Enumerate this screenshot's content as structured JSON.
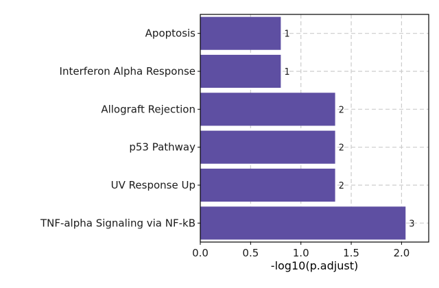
{
  "chart_data": {
    "type": "bar",
    "orientation": "horizontal",
    "title": "",
    "xlabel": "-log10(p.adjust)",
    "ylabel": "",
    "categories": [
      "Apoptosis",
      "Interferon Alpha Response",
      "Allograft Rejection",
      "p53 Pathway",
      "UV Response Up",
      "TNF-alpha Signaling via NF-kB"
    ],
    "values": [
      0.8,
      0.8,
      1.34,
      1.34,
      1.34,
      2.04
    ],
    "bar_labels": [
      "1",
      "1",
      "2",
      "2",
      "2",
      "3"
    ],
    "xlim": [
      0,
      2.27
    ],
    "xticks": [
      0.0,
      0.5,
      1.0,
      1.5,
      2.0
    ],
    "xtick_labels": [
      "0.0",
      "0.5",
      "1.0",
      "1.5",
      "2.0"
    ],
    "grid": true,
    "legend": "none",
    "bar_color": "#5e4fa2"
  }
}
